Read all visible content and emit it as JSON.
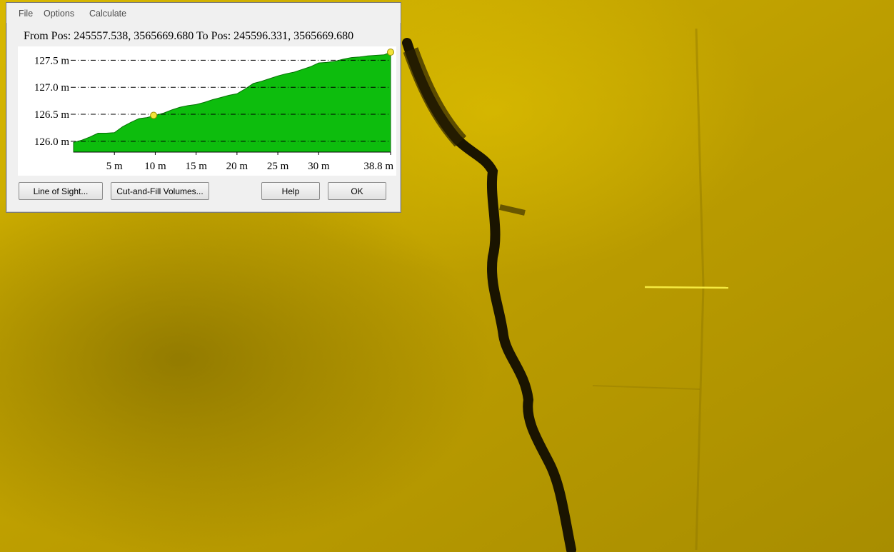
{
  "menu": {
    "file": "File",
    "options": "Options",
    "calculate": "Calculate"
  },
  "position_text": "From Pos: 245557.538, 3565669.680 To Pos: 245596.331, 3565669.680",
  "buttons": {
    "line_of_sight": "Line of Sight...",
    "cut_fill": "Cut-and-Fill Volumes...",
    "help": "Help",
    "ok": "OK"
  },
  "colors": {
    "profile_fill": "#0dbd0d",
    "marker": "#f3e43a",
    "terrain": "#c9a800"
  },
  "chart_data": {
    "type": "area",
    "x_tick_labels": [
      "5 m",
      "10 m",
      "15 m",
      "20 m",
      "25 m",
      "30 m",
      "38.8 m"
    ],
    "x_ticks": [
      5,
      10,
      15,
      20,
      25,
      30,
      38.8
    ],
    "y_tick_labels": [
      "127.5 m",
      "127.0 m",
      "126.5 m",
      "126.0 m"
    ],
    "y_ticks": [
      127.5,
      127.0,
      126.5,
      126.0
    ],
    "xlim": [
      0,
      38.8
    ],
    "ylim": [
      125.8,
      127.65
    ],
    "grid": true,
    "x": [
      0,
      1,
      2,
      3,
      4,
      5,
      6,
      7,
      8,
      9,
      10,
      11,
      12,
      13,
      14,
      15,
      16,
      17,
      18,
      19,
      20,
      21,
      22,
      23,
      24,
      25,
      26,
      27,
      28,
      29,
      30,
      31,
      32,
      33,
      34,
      35,
      36,
      37,
      38,
      38.8
    ],
    "y": [
      125.98,
      126.02,
      126.08,
      126.15,
      126.15,
      126.16,
      126.27,
      126.35,
      126.42,
      126.44,
      126.48,
      126.52,
      126.58,
      126.63,
      126.66,
      126.68,
      126.72,
      126.77,
      126.81,
      126.85,
      126.88,
      126.97,
      127.07,
      127.11,
      127.16,
      127.21,
      127.25,
      127.28,
      127.33,
      127.38,
      127.45,
      127.46,
      127.48,
      127.52,
      127.55,
      127.56,
      127.58,
      127.59,
      127.6,
      127.65
    ],
    "markers": [
      {
        "x": 9.8,
        "y": 126.48
      },
      {
        "x": 38.8,
        "y": 127.65
      }
    ]
  }
}
